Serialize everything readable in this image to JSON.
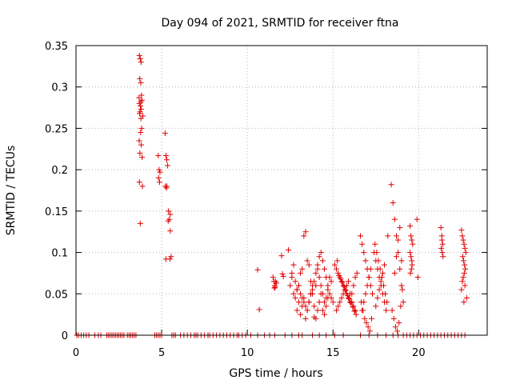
{
  "chart_data": {
    "type": "scatter",
    "title": "Day 094 of 2021, SRMTID for receiver ftna",
    "xlabel": "GPS time / hours",
    "ylabel": "SRMTID / TECUs",
    "xlim": [
      0,
      24
    ],
    "ylim": [
      0,
      0.35
    ],
    "x_ticks": [
      0,
      5,
      10,
      15,
      20
    ],
    "x_tick_labels": [
      "0",
      "5",
      "10",
      "15",
      "20"
    ],
    "y_ticks": [
      0,
      0.05,
      0.1,
      0.15,
      0.2,
      0.25,
      0.3,
      0.35
    ],
    "y_tick_labels": [
      "0",
      "0.05",
      "0.1",
      "0.15",
      "0.2",
      "0.25",
      "0.3",
      "0.35"
    ],
    "grid": true,
    "marker": "+",
    "series": [
      {
        "name": "SRMTID",
        "color": "#e00000",
        "x": [
          0.05,
          0.15,
          0.3,
          0.45,
          0.6,
          0.75,
          1.1,
          1.3,
          1.45,
          1.8,
          1.9,
          2.0,
          2.1,
          2.2,
          2.3,
          2.4,
          2.5,
          2.6,
          2.7,
          2.8,
          3.0,
          3.1,
          3.2,
          3.3,
          3.4,
          3.5,
          4.6,
          4.7,
          4.8,
          4.9,
          5.0,
          5.6,
          5.7,
          5.8,
          6.1,
          6.3,
          6.5,
          6.7,
          6.9,
          7.0,
          7.1,
          7.3,
          7.5,
          7.7,
          7.8,
          8.0,
          8.2,
          8.4,
          8.6,
          8.8,
          9.0,
          9.2,
          9.4,
          9.5,
          9.7,
          9.9,
          10.2,
          10.6,
          11.0,
          11.3,
          11.6,
          12.2,
          12.6,
          13.0,
          13.2,
          13.8,
          14.2,
          14.6,
          15.1,
          15.6,
          16.6,
          17.1,
          17.6,
          18.1,
          18.5,
          18.8,
          19.1,
          19.3,
          19.5,
          19.7,
          19.9,
          20.1,
          20.3,
          20.5,
          20.7,
          20.9,
          21.1,
          21.3,
          21.5,
          21.7,
          21.9,
          22.1,
          22.3,
          22.5,
          22.7,
          3.7,
          3.75,
          3.8,
          3.72,
          3.78,
          3.82,
          3.68,
          3.85,
          3.7,
          3.76,
          3.8,
          3.74,
          3.71,
          3.79,
          3.83,
          3.77,
          3.69,
          3.81,
          3.73,
          3.86,
          3.7,
          3.88,
          3.75,
          3.9,
          3.78,
          4.8,
          4.85,
          4.9,
          4.82,
          4.88,
          5.2,
          5.25,
          5.3,
          5.22,
          5.28,
          5.35,
          5.4,
          5.5,
          5.45,
          5.38,
          5.5,
          5.55,
          5.48,
          5.25,
          5.3,
          10.6,
          10.7,
          11.5,
          11.55,
          11.6,
          11.62,
          11.65,
          11.7,
          11.58,
          12.0,
          12.05,
          12.1,
          12.4,
          12.5,
          12.6,
          12.7,
          12.8,
          12.9,
          13.0,
          13.1,
          13.2,
          13.3,
          13.4,
          13.5,
          13.6,
          13.7,
          13.8,
          13.9,
          14.0,
          14.1,
          14.2,
          14.3,
          14.4,
          14.5,
          14.6,
          14.7,
          14.8,
          14.9,
          12.6,
          12.7,
          12.8,
          12.9,
          13.0,
          13.1,
          13.2,
          13.3,
          13.4,
          13.5,
          13.6,
          13.7,
          13.8,
          13.9,
          14.0,
          14.1,
          14.2,
          14.3,
          14.4,
          14.5,
          14.6,
          14.7,
          14.8,
          14.9,
          15.0,
          12.9,
          13.0,
          13.1,
          13.2,
          13.3,
          13.4,
          13.5,
          13.6,
          13.7,
          13.8,
          13.9,
          14.0,
          14.1,
          14.2,
          14.3,
          14.4,
          14.5,
          14.6,
          14.7,
          15.1,
          15.2,
          15.3,
          15.4,
          15.5,
          15.6,
          15.7,
          15.8,
          15.9,
          16.0,
          16.1,
          16.2,
          16.3,
          16.4,
          15.2,
          15.3,
          15.4,
          15.5,
          15.6,
          15.7,
          15.8,
          15.9,
          16.0,
          16.1,
          16.2,
          16.3,
          15.25,
          15.35,
          15.45,
          15.55,
          15.65,
          15.75,
          15.85,
          15.95,
          16.05,
          16.15,
          16.25,
          16.35,
          16.6,
          16.7,
          16.8,
          16.9,
          17.0,
          17.1,
          17.2,
          17.3,
          16.65,
          16.75,
          16.85,
          16.95,
          17.05,
          17.15,
          17.25,
          16.7,
          16.8,
          16.9,
          17.0,
          17.1,
          17.2,
          17.4,
          17.5,
          17.6,
          17.7,
          17.8,
          17.9,
          18.0,
          18.1,
          18.2,
          17.45,
          17.55,
          17.65,
          17.75,
          17.85,
          17.95,
          18.05,
          18.15,
          17.5,
          17.6,
          17.7,
          17.8,
          17.9,
          18.0,
          18.4,
          18.5,
          18.6,
          18.7,
          18.8,
          18.9,
          19.0,
          19.1,
          18.45,
          18.55,
          18.65,
          18.75,
          18.85,
          18.95,
          19.05,
          18.6,
          18.7,
          18.8,
          18.9,
          19.0,
          19.5,
          19.55,
          19.6,
          19.65,
          19.5,
          19.55,
          19.6,
          19.62,
          19.58,
          19.52,
          19.9,
          19.95,
          21.3,
          21.35,
          21.4,
          21.32,
          21.38,
          21.42,
          21.36,
          22.5,
          22.55,
          22.6,
          22.65,
          22.7,
          22.75,
          22.58,
          22.62,
          22.68,
          22.72,
          22.66,
          22.6,
          22.55,
          22.7,
          22.5,
          22.8,
          22.64
        ],
        "y": [
          0,
          0,
          0,
          0,
          0,
          0,
          0,
          0,
          0,
          0,
          0,
          0,
          0,
          0,
          0,
          0,
          0,
          0,
          0,
          0,
          0,
          0,
          0,
          0,
          0,
          0,
          0,
          0,
          0,
          0,
          0,
          0,
          0,
          0,
          0,
          0,
          0,
          0,
          0,
          0,
          0,
          0,
          0,
          0,
          0,
          0,
          0,
          0,
          0,
          0,
          0,
          0,
          0,
          0,
          0,
          0,
          0,
          0,
          0,
          0,
          0,
          0,
          0,
          0,
          0,
          0,
          0,
          0,
          0,
          0,
          0,
          0,
          0,
          0,
          0,
          0,
          0,
          0,
          0,
          0,
          0,
          0,
          0,
          0,
          0,
          0,
          0,
          0,
          0,
          0,
          0,
          0,
          0,
          0,
          0,
          0.338,
          0.334,
          0.33,
          0.31,
          0.305,
          0.29,
          0.287,
          0.284,
          0.28,
          0.277,
          0.273,
          0.27,
          0.268,
          0.262,
          0.25,
          0.245,
          0.235,
          0.23,
          0.22,
          0.215,
          0.185,
          0.18,
          0.135,
          0.265,
          0.282,
          0.217,
          0.2,
          0.197,
          0.19,
          0.185,
          0.244,
          0.217,
          0.212,
          0.18,
          0.178,
          0.205,
          0.15,
          0.146,
          0.14,
          0.138,
          0.126,
          0.095,
          0.092,
          0.092,
          0.18,
          0.079,
          0.031,
          0.07,
          0.065,
          0.06,
          0.058,
          0.065,
          0.063,
          0.057,
          0.096,
          0.074,
          0.071,
          0.103,
          0.06,
          0.07,
          0.05,
          0.045,
          0.055,
          0.06,
          0.075,
          0.08,
          0.12,
          0.125,
          0.09,
          0.085,
          0.065,
          0.05,
          0.035,
          0.06,
          0.08,
          0.07,
          0.06,
          0.05,
          0.04,
          0.045,
          0.055,
          0.07,
          0.065,
          0.075,
          0.085,
          0.065,
          0.055,
          0.06,
          0.05,
          0.045,
          0.04,
          0.035,
          0.03,
          0.04,
          0.05,
          0.055,
          0.065,
          0.075,
          0.085,
          0.095,
          0.1,
          0.09,
          0.08,
          0.07,
          0.06,
          0.05,
          0.045,
          0.04,
          0.03,
          0.04,
          0.025,
          0.035,
          0.045,
          0.02,
          0.03,
          0.04,
          0.05,
          0.06,
          0.022,
          0.02,
          0.03,
          0.04,
          0.05,
          0.03,
          0.025,
          0.035,
          0.045,
          0.085,
          0.08,
          0.075,
          0.07,
          0.065,
          0.06,
          0.055,
          0.05,
          0.045,
          0.04,
          0.05,
          0.06,
          0.07,
          0.075,
          0.03,
          0.035,
          0.04,
          0.045,
          0.05,
          0.055,
          0.06,
          0.065,
          0.05,
          0.04,
          0.035,
          0.03,
          0.09,
          0.072,
          0.068,
          0.064,
          0.059,
          0.054,
          0.048,
          0.044,
          0.039,
          0.034,
          0.029,
          0.025,
          0.12,
          0.11,
          0.1,
          0.09,
          0.08,
          0.07,
          0.06,
          0.05,
          0.04,
          0.03,
          0.02,
          0.015,
          0.01,
          0.005,
          0.02,
          0.03,
          0.04,
          0.05,
          0.06,
          0.07,
          0.08,
          0.1,
          0.09,
          0.08,
          0.07,
          0.06,
          0.05,
          0.04,
          0.03,
          0.12,
          0.11,
          0.1,
          0.09,
          0.08,
          0.07,
          0.06,
          0.05,
          0.04,
          0.035,
          0.045,
          0.055,
          0.065,
          0.075,
          0.085,
          0.182,
          0.16,
          0.14,
          0.12,
          0.1,
          0.08,
          0.06,
          0.04,
          0.03,
          0.02,
          0.01,
          0.005,
          0.015,
          0.035,
          0.055,
          0.075,
          0.095,
          0.115,
          0.13,
          0.09,
          0.132,
          0.12,
          0.115,
          0.11,
          0.1,
          0.095,
          0.09,
          0.085,
          0.08,
          0.075,
          0.14,
          0.07,
          0.13,
          0.12,
          0.11,
          0.105,
          0.1,
          0.095,
          0.115,
          0.127,
          0.12,
          0.115,
          0.11,
          0.105,
          0.1,
          0.095,
          0.09,
          0.085,
          0.08,
          0.075,
          0.07,
          0.065,
          0.06,
          0.055,
          0.045,
          0.04
        ]
      }
    ]
  }
}
